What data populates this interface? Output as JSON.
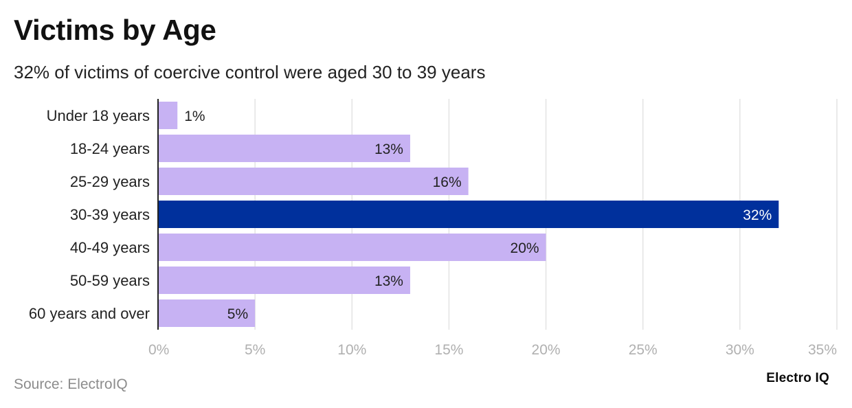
{
  "chart_data": {
    "type": "bar",
    "orientation": "horizontal",
    "title": "Victims by Age",
    "subtitle": "32% of victims of coercive control were aged 30 to 39 years",
    "categories": [
      "Under 18 years",
      "18-24 years",
      "25-29 years",
      "30-39 years",
      "40-49 years",
      "50-59 years",
      "60 years and over"
    ],
    "values": [
      1,
      13,
      16,
      32,
      20,
      13,
      5
    ],
    "data_labels": [
      "1%",
      "13%",
      "16%",
      "32%",
      "20%",
      "13%",
      "5%"
    ],
    "highlight_category": "30-39 years",
    "xlim": [
      0,
      35
    ],
    "x_ticks": [
      0,
      5,
      10,
      15,
      20,
      25,
      30,
      35
    ],
    "x_tick_labels": [
      "0%",
      "5%",
      "10%",
      "15%",
      "20%",
      "25%",
      "30%",
      "35%"
    ],
    "xlabel": "",
    "ylabel": "",
    "grid": true,
    "colors": {
      "bar": "#c7b2f3",
      "highlight": "#00309c",
      "grid": "#e3e3e3",
      "axis": "#222222",
      "tick_label": "#b0b0b0",
      "category_label": "#222222",
      "value_label_dark": "#222222",
      "value_label_light": "#ffffff"
    }
  },
  "source": "Source: ElectroIQ",
  "brand": "Electro IQ"
}
